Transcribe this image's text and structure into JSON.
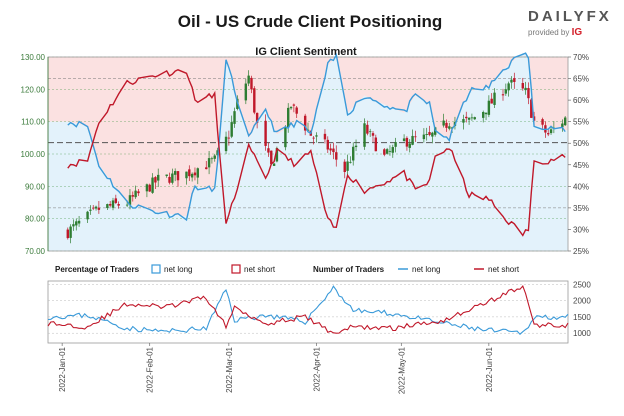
{
  "title": "Oil - US Crude Client Positioning",
  "brand": {
    "name": "DAILYFX",
    "provided_by": "provided by",
    "provider": "IG"
  },
  "chart_data": [
    {
      "type": "candlestick",
      "title": "IG Client Sentiment",
      "y_left": {
        "ticks": [
          "70.00",
          "80.00",
          "90.00",
          "100.00",
          "110.00",
          "120.00",
          "130.00"
        ],
        "range": [
          70,
          130
        ]
      },
      "y_right": {
        "ticks": [
          "25%",
          "30%",
          "35%",
          "40%",
          "45%",
          "50%",
          "55%",
          "60%",
          "65%",
          "70%"
        ],
        "range": [
          25,
          70
        ]
      },
      "x_range": [
        "2021-12-27",
        "2022-06-29"
      ],
      "price_reference_line": 103.5,
      "colors": {
        "net_long": "#3a9ad9",
        "net_short": "#c0182a",
        "up_candle": "#2e7d32",
        "down_candle": "#c0182a",
        "long_fill": "#e3f2fb",
        "short_fill": "#fbe1e1"
      },
      "price_anchors": [
        {
          "date": "2022-01-03",
          "close": 76
        },
        {
          "date": "2022-01-14",
          "close": 83
        },
        {
          "date": "2022-01-24",
          "close": 85
        },
        {
          "date": "2022-02-04",
          "close": 92
        },
        {
          "date": "2022-02-14",
          "close": 94
        },
        {
          "date": "2022-02-24",
          "close": 98
        },
        {
          "date": "2022-03-01",
          "close": 106
        },
        {
          "date": "2022-03-04",
          "close": 116
        },
        {
          "date": "2022-03-08",
          "close": 124
        },
        {
          "date": "2022-03-11",
          "close": 109
        },
        {
          "date": "2022-03-16",
          "close": 96
        },
        {
          "date": "2022-03-23",
          "close": 115
        },
        {
          "date": "2022-03-30",
          "close": 106
        },
        {
          "date": "2022-04-05",
          "close": 102
        },
        {
          "date": "2022-04-11",
          "close": 95
        },
        {
          "date": "2022-04-18",
          "close": 108
        },
        {
          "date": "2022-04-25",
          "close": 99
        },
        {
          "date": "2022-05-02",
          "close": 104
        },
        {
          "date": "2022-05-11",
          "close": 105
        },
        {
          "date": "2022-05-18",
          "close": 110
        },
        {
          "date": "2022-05-25",
          "close": 110
        },
        {
          "date": "2022-06-01",
          "close": 115
        },
        {
          "date": "2022-06-08",
          "close": 122
        },
        {
          "date": "2022-06-14",
          "close": 119
        },
        {
          "date": "2022-06-17",
          "close": 110
        },
        {
          "date": "2022-06-22",
          "close": 106
        },
        {
          "date": "2022-06-28",
          "close": 111
        }
      ],
      "net_long_pct_anchors": [
        {
          "date": "2022-01-03",
          "value": 55
        },
        {
          "date": "2022-01-10",
          "value": 54
        },
        {
          "date": "2022-01-14",
          "value": 45
        },
        {
          "date": "2022-01-24",
          "value": 36
        },
        {
          "date": "2022-02-04",
          "value": 34
        },
        {
          "date": "2022-02-14",
          "value": 33
        },
        {
          "date": "2022-02-17",
          "value": 40
        },
        {
          "date": "2022-02-24",
          "value": 39
        },
        {
          "date": "2022-02-28",
          "value": 69
        },
        {
          "date": "2022-03-01",
          "value": 67
        },
        {
          "date": "2022-03-08",
          "value": 51
        },
        {
          "date": "2022-03-14",
          "value": 58
        },
        {
          "date": "2022-03-18",
          "value": 52
        },
        {
          "date": "2022-03-25",
          "value": 55
        },
        {
          "date": "2022-03-30",
          "value": 52
        },
        {
          "date": "2022-04-05",
          "value": 68
        },
        {
          "date": "2022-04-08",
          "value": 70
        },
        {
          "date": "2022-04-12",
          "value": 57
        },
        {
          "date": "2022-04-18",
          "value": 61
        },
        {
          "date": "2022-04-25",
          "value": 59
        },
        {
          "date": "2022-05-02",
          "value": 57
        },
        {
          "date": "2022-05-06",
          "value": 61
        },
        {
          "date": "2022-05-11",
          "value": 59
        },
        {
          "date": "2022-05-13",
          "value": 53
        },
        {
          "date": "2022-05-18",
          "value": 51
        },
        {
          "date": "2022-05-25",
          "value": 62
        },
        {
          "date": "2022-06-01",
          "value": 63
        },
        {
          "date": "2022-06-06",
          "value": 67
        },
        {
          "date": "2022-06-13",
          "value": 71
        },
        {
          "date": "2022-06-15",
          "value": 70
        },
        {
          "date": "2022-06-17",
          "value": 54
        },
        {
          "date": "2022-06-22",
          "value": 54
        },
        {
          "date": "2022-06-28",
          "value": 53
        }
      ],
      "net_short_pct_anchors": [
        {
          "date": "2022-01-03",
          "value": 45
        },
        {
          "date": "2022-01-10",
          "value": 46
        },
        {
          "date": "2022-01-14",
          "value": 55
        },
        {
          "date": "2022-01-24",
          "value": 64
        },
        {
          "date": "2022-02-04",
          "value": 66
        },
        {
          "date": "2022-02-14",
          "value": 67
        },
        {
          "date": "2022-02-17",
          "value": 60
        },
        {
          "date": "2022-02-24",
          "value": 61
        },
        {
          "date": "2022-02-28",
          "value": 31
        },
        {
          "date": "2022-03-01",
          "value": 33
        },
        {
          "date": "2022-03-08",
          "value": 49
        },
        {
          "date": "2022-03-14",
          "value": 42
        },
        {
          "date": "2022-03-18",
          "value": 48
        },
        {
          "date": "2022-03-25",
          "value": 45
        },
        {
          "date": "2022-03-30",
          "value": 48
        },
        {
          "date": "2022-04-05",
          "value": 32
        },
        {
          "date": "2022-04-08",
          "value": 30
        },
        {
          "date": "2022-04-12",
          "value": 43
        },
        {
          "date": "2022-04-18",
          "value": 39
        },
        {
          "date": "2022-04-25",
          "value": 41
        },
        {
          "date": "2022-05-02",
          "value": 43
        },
        {
          "date": "2022-05-06",
          "value": 39
        },
        {
          "date": "2022-05-11",
          "value": 41
        },
        {
          "date": "2022-05-13",
          "value": 47
        },
        {
          "date": "2022-05-18",
          "value": 49
        },
        {
          "date": "2022-05-25",
          "value": 38
        },
        {
          "date": "2022-06-01",
          "value": 37
        },
        {
          "date": "2022-06-06",
          "value": 33
        },
        {
          "date": "2022-06-13",
          "value": 29
        },
        {
          "date": "2022-06-15",
          "value": 30
        },
        {
          "date": "2022-06-17",
          "value": 46
        },
        {
          "date": "2022-06-22",
          "value": 46
        },
        {
          "date": "2022-06-28",
          "value": 47
        }
      ]
    },
    {
      "type": "line",
      "legend": {
        "percentage_label": "Percentage of Traders",
        "number_label": "Number of Traders",
        "net_long": "net long",
        "net_short": "net short"
      },
      "y_right": {
        "ticks": [
          "1000",
          "1500",
          "2000",
          "2500"
        ],
        "range": [
          700,
          2600
        ]
      },
      "x_ticks": [
        "2022-Jan-01",
        "2022-Feb-01",
        "2022-Mar-01",
        "2022-Apr-01",
        "2022-May-01",
        "2022-Jun-01"
      ],
      "x_tick_dates": [
        "2022-01-01",
        "2022-02-01",
        "2022-03-01",
        "2022-04-01",
        "2022-05-01",
        "2022-06-01"
      ],
      "long_count_anchors": [
        {
          "date": "2021-12-27",
          "value": 1500
        },
        {
          "date": "2022-01-10",
          "value": 1550
        },
        {
          "date": "2022-01-24",
          "value": 1150
        },
        {
          "date": "2022-02-07",
          "value": 1050
        },
        {
          "date": "2022-02-21",
          "value": 1150
        },
        {
          "date": "2022-02-28",
          "value": 2350
        },
        {
          "date": "2022-03-03",
          "value": 1400
        },
        {
          "date": "2022-03-14",
          "value": 1550
        },
        {
          "date": "2022-03-28",
          "value": 1350
        },
        {
          "date": "2022-04-07",
          "value": 2400
        },
        {
          "date": "2022-04-14",
          "value": 1700
        },
        {
          "date": "2022-04-28",
          "value": 1600
        },
        {
          "date": "2022-05-16",
          "value": 1300
        },
        {
          "date": "2022-05-30",
          "value": 1100
        },
        {
          "date": "2022-06-13",
          "value": 1000
        },
        {
          "date": "2022-06-17",
          "value": 1500
        },
        {
          "date": "2022-06-29",
          "value": 1500
        }
      ],
      "short_count_anchors": [
        {
          "date": "2021-12-27",
          "value": 1300
        },
        {
          "date": "2022-01-10",
          "value": 1200
        },
        {
          "date": "2022-01-24",
          "value": 1900
        },
        {
          "date": "2022-02-07",
          "value": 1800
        },
        {
          "date": "2022-02-21",
          "value": 2100
        },
        {
          "date": "2022-02-28",
          "value": 1200
        },
        {
          "date": "2022-03-03",
          "value": 1800
        },
        {
          "date": "2022-03-14",
          "value": 1300
        },
        {
          "date": "2022-03-28",
          "value": 1500
        },
        {
          "date": "2022-04-07",
          "value": 1000
        },
        {
          "date": "2022-04-14",
          "value": 1200
        },
        {
          "date": "2022-04-28",
          "value": 1150
        },
        {
          "date": "2022-05-16",
          "value": 1400
        },
        {
          "date": "2022-05-30",
          "value": 1900
        },
        {
          "date": "2022-06-13",
          "value": 2450
        },
        {
          "date": "2022-06-17",
          "value": 1250
        },
        {
          "date": "2022-06-29",
          "value": 1250
        }
      ]
    }
  ]
}
